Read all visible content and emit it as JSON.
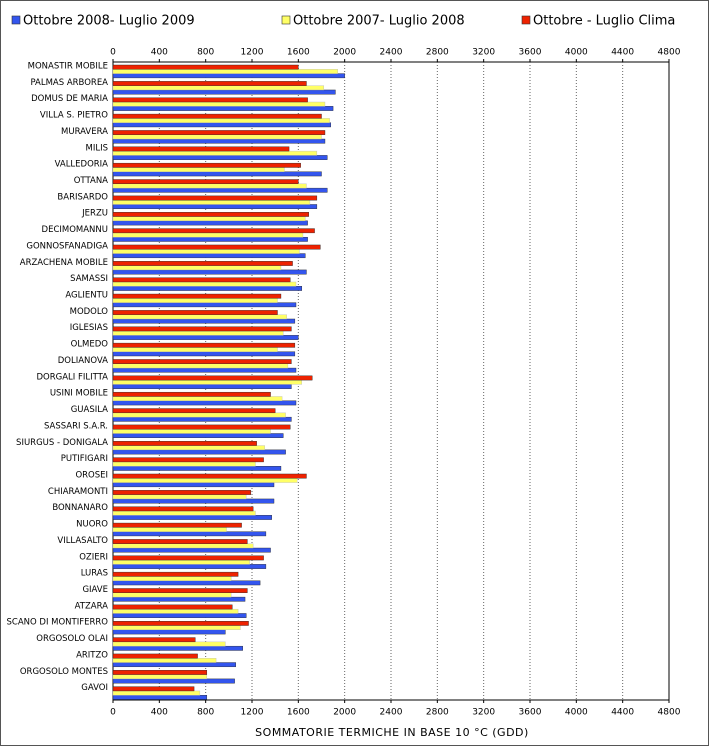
{
  "chart_data": {
    "type": "bar",
    "orientation": "horizontal",
    "x_label": "SOMMATORIE TERMICHE IN BASE 10 °C (GDD)",
    "categories": [
      "MONASTIR MOBILE",
      "PALMAS ARBOREA",
      "DOMUS DE MARIA",
      "VILLA S. PIETRO",
      "MURAVERA",
      "MILIS",
      "VALLEDORIA",
      "OTTANA",
      "BARISARDO",
      "JERZU",
      "DECIMOMANNU",
      "GONNOSFANADIGA",
      "ARZACHENA MOBILE",
      "SAMASSI",
      "AGLIENTU",
      "MODOLO",
      "IGLESIAS",
      "OLMEDO",
      "DOLIANOVA",
      "DORGALI FILITTA",
      "USINI MOBILE",
      "GUASILA",
      "SASSARI S.A.R.",
      "SIURGUS - DONIGALA",
      "PUTIFIGARI",
      "OROSEI",
      "CHIARAMONTI",
      "BONNANARO",
      "NUORO",
      "VILLASALTO",
      "OZIERI",
      "LURAS",
      "GIAVE",
      "ATZARA",
      "SCANO DI MONTIFERRO",
      "ORGOSOLO OLAI",
      "ARITZO",
      "ORGOSOLO MONTES",
      "GAVOI"
    ],
    "series": [
      {
        "name": "Ottobre 2008- Luglio 2009",
        "color": "#3355ee",
        "values": [
          2000,
          1920,
          1900,
          1880,
          1830,
          1850,
          1800,
          1850,
          1760,
          1680,
          1680,
          1660,
          1670,
          1630,
          1580,
          1570,
          1600,
          1570,
          1580,
          1540,
          1580,
          1540,
          1470,
          1490,
          1450,
          1390,
          1390,
          1370,
          1320,
          1360,
          1320,
          1270,
          1140,
          1150,
          970,
          1120,
          1060,
          1050,
          810
        ]
      },
      {
        "name": "Ottobre 2007- Luglio 2008",
        "color": "#ffff66",
        "values": [
          1940,
          1820,
          1830,
          1870,
          1800,
          1760,
          1480,
          1670,
          1700,
          1660,
          1640,
          1610,
          1450,
          1580,
          1420,
          1500,
          1470,
          1420,
          1510,
          1630,
          1460,
          1490,
          1360,
          1310,
          1230,
          1590,
          1150,
          1230,
          980,
          1210,
          1180,
          1020,
          1020,
          1080,
          1100,
          970,
          890,
          810,
          750
        ]
      },
      {
        "name": "Ottobre - Luglio Clima",
        "color": "#ee2200",
        "values": [
          1600,
          1670,
          1680,
          1800,
          1830,
          1520,
          1620,
          1600,
          1760,
          1690,
          1740,
          1790,
          1550,
          1530,
          1450,
          1420,
          1540,
          1570,
          1540,
          1720,
          1360,
          1400,
          1530,
          1240,
          1300,
          1670,
          1190,
          1210,
          1110,
          1160,
          1300,
          1080,
          1160,
          1030,
          1170,
          710,
          730,
          810,
          700
        ]
      }
    ],
    "xlim": [
      0,
      4800
    ],
    "xticks": [
      0,
      400,
      800,
      1200,
      1600,
      2000,
      2400,
      2800,
      3200,
      3600,
      4000,
      4400,
      4800
    ],
    "grid": true
  }
}
